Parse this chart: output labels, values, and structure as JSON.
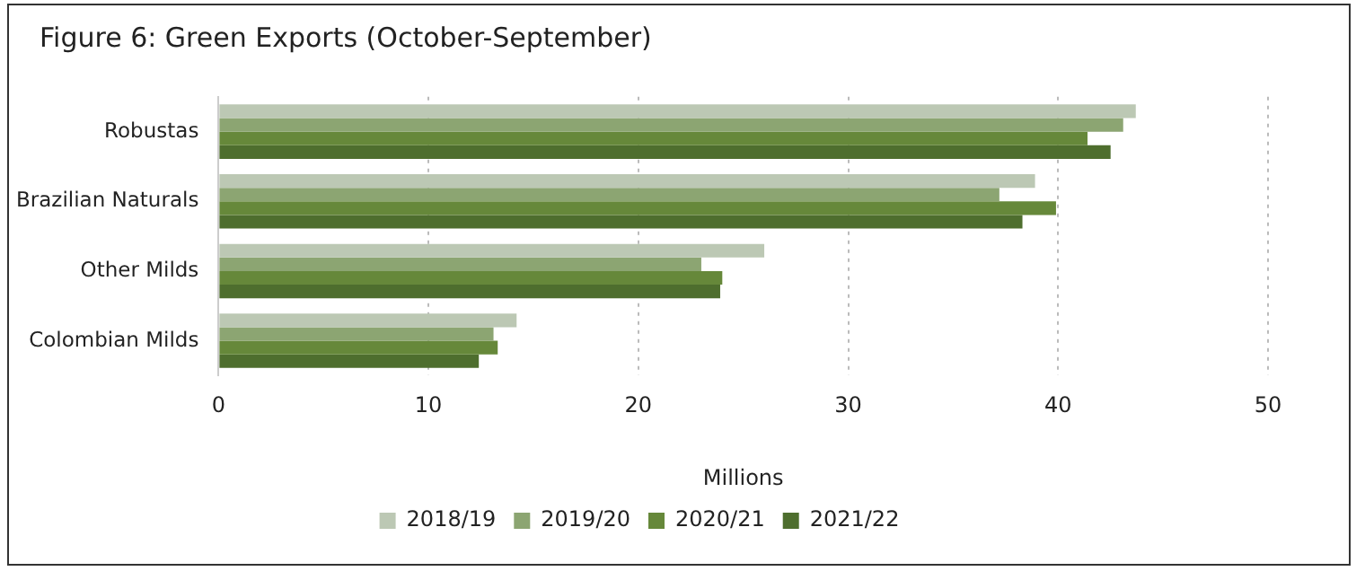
{
  "chart_data": {
    "type": "bar",
    "orientation": "horizontal",
    "title": "Figure 6: Green Exports (October-September)",
    "xlabel": "Millions",
    "categories": [
      "Robustas",
      "Brazilian Naturals",
      "Other Milds",
      "Colombian Milds"
    ],
    "series": [
      {
        "name": "2018/19",
        "color": "#bcc8b4",
        "values": [
          43.7,
          38.9,
          26.0,
          14.2
        ]
      },
      {
        "name": "2019/20",
        "color": "#8ca572",
        "values": [
          43.1,
          37.2,
          23.0,
          13.1
        ]
      },
      {
        "name": "2020/21",
        "color": "#66883a",
        "values": [
          41.4,
          39.9,
          24.0,
          13.3
        ]
      },
      {
        "name": "2021/22",
        "color": "#4e6e2e",
        "values": [
          42.5,
          38.3,
          23.9,
          12.4
        ]
      }
    ],
    "xlim": [
      0,
      50
    ],
    "xticks": [
      0,
      10,
      20,
      30,
      40,
      50
    ],
    "grid": "x",
    "legend": "bottom"
  }
}
